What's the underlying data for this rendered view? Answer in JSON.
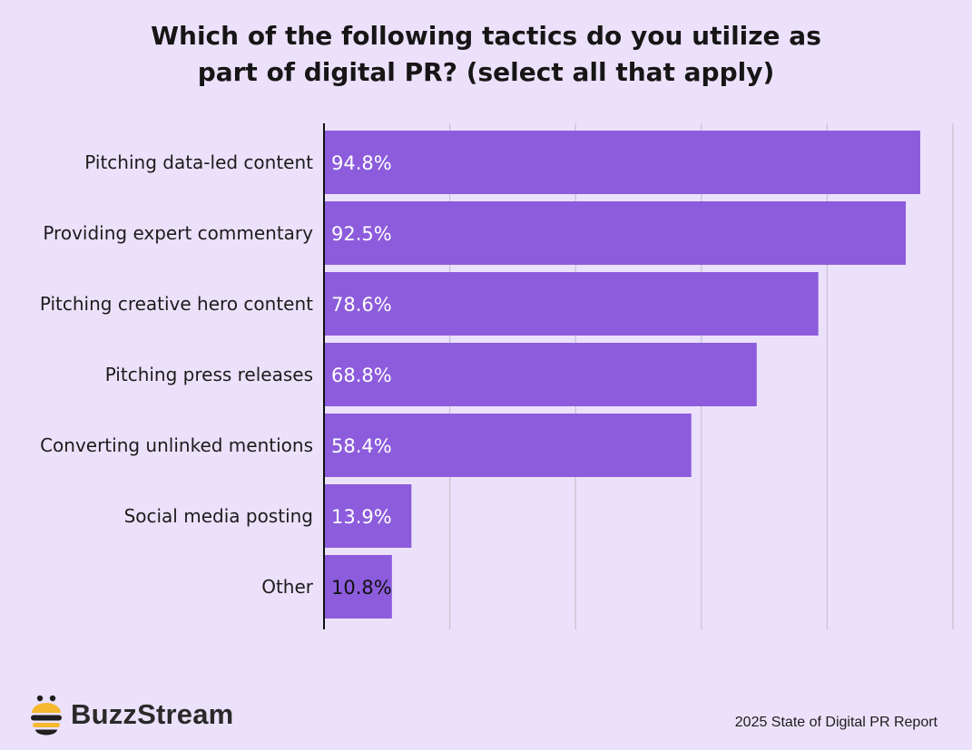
{
  "chart_data": {
    "type": "bar",
    "orientation": "horizontal",
    "title_lines": [
      "Which of the following tactics do you utilize as",
      "part of digital PR? (select all that apply)"
    ],
    "categories": [
      "Pitching data-led content",
      "Providing expert commentary",
      "Pitching creative hero content",
      "Pitching press releases",
      "Converting unlinked mentions",
      "Social media posting",
      "Other"
    ],
    "values": [
      94.8,
      92.5,
      78.6,
      68.8,
      58.4,
      13.9,
      10.8
    ],
    "data_labels": [
      "94.8%",
      "92.5%",
      "78.6%",
      "68.8%",
      "58.4%",
      "13.9%",
      "10.8%"
    ],
    "xlim": [
      0,
      100
    ],
    "grid": true,
    "legend": "none",
    "colors": {
      "bar": "#8c5cdc",
      "background": "#ece1fb",
      "grid": "#c8c3d0",
      "axis": "#111111",
      "label_on_bar": "#ffffff",
      "label_last": "#111111"
    }
  },
  "branding": {
    "logo_text": "BuzzStream",
    "logo_icon": "bee-icon",
    "source": "2025 State of Digital PR Report"
  }
}
